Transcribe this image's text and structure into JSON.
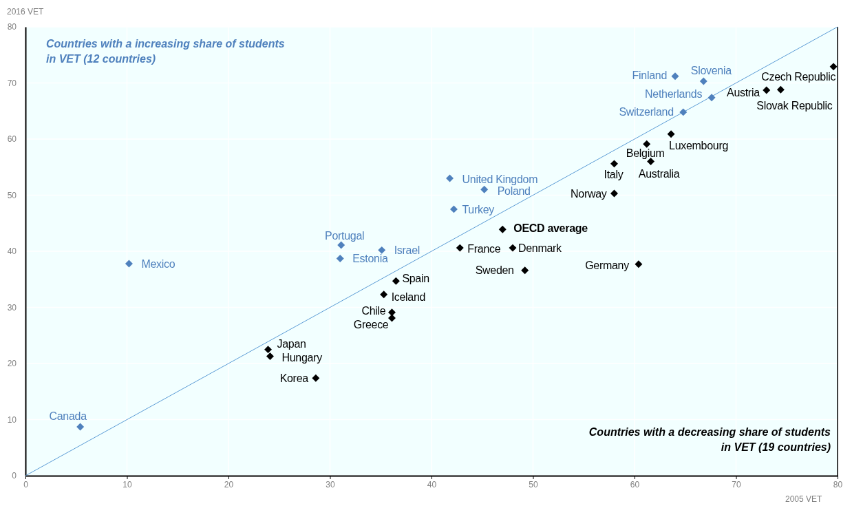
{
  "chart_data": {
    "type": "scatter",
    "xlabel": "2005 VET",
    "ylabel": "2016 VET",
    "xlim": [
      0,
      80
    ],
    "ylim": [
      0,
      80
    ],
    "xticks": [
      0,
      10,
      20,
      30,
      40,
      50,
      60,
      70,
      80
    ],
    "yticks": [
      0,
      10,
      20,
      30,
      40,
      50,
      60,
      70,
      80
    ],
    "grid": true,
    "marker": "diamond",
    "annotations": [
      "Countries with a increasing share of students\nin VET (12 countries)",
      "Countries with a decreasing share of students\nin VET (19 countries)"
    ],
    "series": [
      {
        "type": "line",
        "marker": "none",
        "color": "#5b9bd5",
        "x": [
          0,
          80
        ],
        "values": [
          0,
          80
        ]
      },
      {
        "color": "#4f81bd",
        "x": [
          5.4,
          10.2,
          31.1,
          31.0,
          35.1,
          41.8,
          45.2,
          42.2,
          64.0,
          66.8,
          67.6,
          64.8
        ],
        "values": [
          8.7,
          37.8,
          41.1,
          38.7,
          40.2,
          53.0,
          51.0,
          47.5,
          71.2,
          70.3,
          67.4,
          64.8
        ],
        "value_labels": [
          "Canada",
          "Mexico",
          "Portugal",
          "Estonia",
          "Israel",
          "United Kingdom",
          "Poland",
          "Turkey",
          "Finland",
          "Slovenia",
          "Netherlands",
          "Switzerland"
        ]
      },
      {
        "color": "#000000",
        "x": [
          79.6,
          73.0,
          74.4,
          63.6,
          61.2,
          61.6,
          58.0,
          58.0,
          47.0,
          42.8,
          48.0,
          49.2,
          60.4,
          36.5,
          35.3,
          36.1,
          36.1,
          23.9,
          24.1,
          28.6
        ],
        "values": [
          72.9,
          68.7,
          68.8,
          60.9,
          59.1,
          56.0,
          55.6,
          50.3,
          43.9,
          40.6,
          40.6,
          36.6,
          37.7,
          34.7,
          32.3,
          29.1,
          28.1,
          22.5,
          21.3,
          17.4
        ],
        "value_labels": [
          "Czech Republic",
          "Austria",
          "Slovak Republic",
          "Luxembourg",
          "Belgium",
          "Australia",
          "Italy",
          "Norway",
          "OECD average",
          "France",
          "Denmark",
          "Sweden",
          "Germany",
          "Spain",
          "Iceland",
          "Chile",
          "Greece",
          "Japan",
          "Hungary",
          "Korea"
        ]
      }
    ]
  }
}
